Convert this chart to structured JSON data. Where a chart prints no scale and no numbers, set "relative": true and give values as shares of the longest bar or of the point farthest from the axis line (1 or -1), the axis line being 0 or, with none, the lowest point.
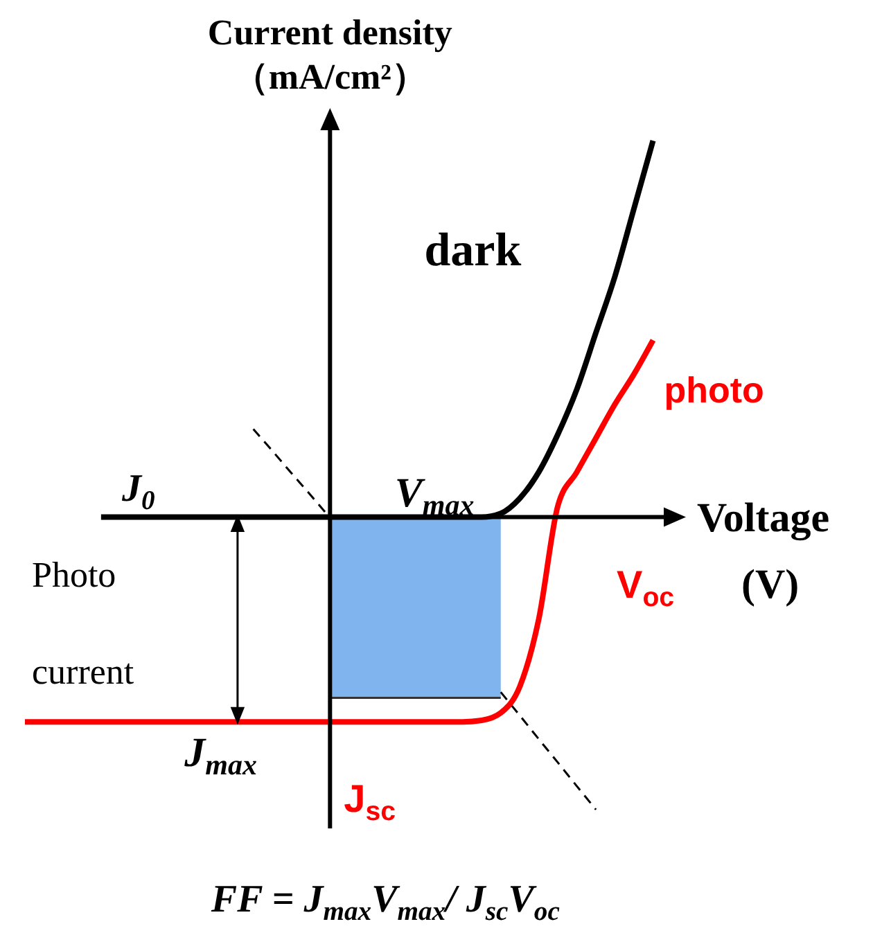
{
  "chart_data": {
    "type": "line",
    "relative": true,
    "ylabel": "Current density（mA/cm²）",
    "xlabel": "Voltage (V)",
    "line_style": "solid",
    "categories": [
      null,
      null,
      null,
      null,
      null,
      null,
      null,
      null,
      null,
      null,
      null,
      null,
      null,
      null,
      null,
      null,
      null,
      null,
      null,
      null,
      null,
      null,
      null,
      null,
      null,
      null,
      null,
      null,
      null,
      null,
      null,
      null,
      null,
      null,
      null
    ],
    "annotations": [
      "J$_{0}$",
      "V$_{max}$",
      "Photo current",
      "J$_{max}$",
      "J$_{sc}$",
      "V$_{oc}$",
      "FF = J$_{max}$V$_{max}$/ J$_{sc}$V$_{oc}$"
    ],
    "series": [
      {
        "type": "area",
        "color": "#80b4ee",
        "values": [
          null,
          null,
          null,
          null,
          null,
          null,
          null,
          null,
          null,
          null,
          null,
          null,
          null,
          null,
          null,
          null,
          -0.48,
          -0.48,
          -0.48,
          -0.48,
          -0.48,
          -0.48,
          -0.48,
          -0.48,
          -0.48,
          -0.48,
          null,
          null,
          null,
          null,
          null,
          null,
          null,
          null,
          null
        ]
      },
      {
        "type": "line",
        "line_style": "dashed",
        "color": "#000000",
        "values": [
          null,
          null,
          null,
          null,
          null,
          null,
          null,
          null,
          null,
          null,
          null,
          null,
          0.234,
          0.176,
          0.117,
          0.059,
          0,
          null,
          null,
          null,
          null,
          null,
          null,
          null,
          null,
          null,
          null,
          null,
          null,
          null,
          null,
          null,
          null,
          null,
          null
        ]
      },
      {
        "type": "line",
        "line_style": "dashed",
        "color": "#000000",
        "values": [
          null,
          null,
          null,
          null,
          null,
          null,
          null,
          null,
          null,
          null,
          null,
          null,
          null,
          null,
          null,
          null,
          null,
          null,
          null,
          null,
          null,
          null,
          null,
          null,
          null,
          -0.465,
          -0.527,
          -0.59,
          -0.652,
          -0.715,
          -0.777,
          null,
          null,
          null,
          null
        ]
      },
      {
        "name": "dark",
        "color": "#000000",
        "values": [
          null,
          null,
          null,
          null,
          0,
          0,
          0,
          0,
          0,
          0,
          0,
          0,
          0,
          0,
          0,
          0,
          0,
          0,
          0,
          0,
          0,
          0,
          0,
          0,
          0,
          0.01,
          0.05,
          0.12,
          0.22,
          0.34,
          0.49,
          0.64,
          0.82,
          1,
          null
        ]
      },
      {
        "name": "photo",
        "color": "#ff0000",
        "values": [
          -0.544,
          -0.544,
          -0.544,
          -0.544,
          -0.544,
          -0.544,
          -0.544,
          -0.544,
          -0.544,
          -0.544,
          -0.544,
          -0.544,
          -0.544,
          -0.544,
          -0.544,
          -0.544,
          -0.544,
          -0.544,
          -0.544,
          -0.544,
          -0.544,
          -0.544,
          -0.544,
          -0.544,
          -0.54,
          -0.52,
          -0.45,
          -0.27,
          0.03,
          0.12,
          0.21,
          0.3,
          0.38,
          0.47,
          null
        ]
      }
    ]
  }
}
